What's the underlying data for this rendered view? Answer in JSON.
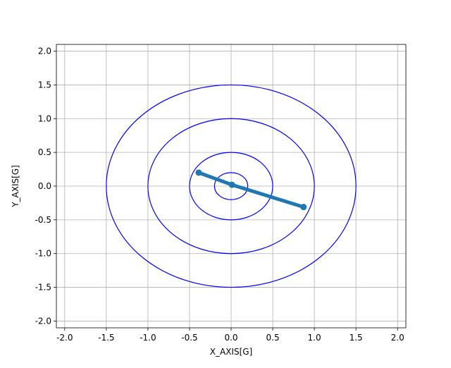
{
  "chart_data": {
    "type": "line",
    "xlabel": "X_AXIS[G]",
    "ylabel": "Y_AXIS[G]",
    "x": [
      -0.39,
      0.01,
      0.87
    ],
    "values": [
      0.2,
      0.02,
      -0.31
    ],
    "color": "#1f77b4",
    "circles": {
      "color": "#0000ff",
      "radii": [
        0.2,
        0.5,
        1,
        1.5
      ]
    },
    "xlim": [
      -2.1,
      2.1
    ],
    "ylim": [
      -2.1,
      2.1
    ],
    "xticks": [
      {
        "value": -2,
        "label": "-2.0"
      },
      {
        "value": -1.5,
        "label": "-1.5"
      },
      {
        "value": -1,
        "label": "-1.0"
      },
      {
        "value": -0.5,
        "label": "-0.5"
      },
      {
        "value": 0,
        "label": "0.0"
      },
      {
        "value": 0.5,
        "label": "0.5"
      },
      {
        "value": 1,
        "label": "1.0"
      },
      {
        "value": 1.5,
        "label": "1.5"
      },
      {
        "value": 2,
        "label": "2.0"
      }
    ],
    "yticks": [
      {
        "value": -2,
        "label": "-2.0"
      },
      {
        "value": -1.5,
        "label": "-1.5"
      },
      {
        "value": -1,
        "label": "-1.0"
      },
      {
        "value": -0.5,
        "label": "-0.5"
      },
      {
        "value": 0,
        "label": "0.0"
      },
      {
        "value": 0.5,
        "label": "0.5"
      },
      {
        "value": 1,
        "label": "1.0"
      },
      {
        "value": 1.5,
        "label": "1.5"
      },
      {
        "value": 2,
        "label": "2.0"
      }
    ],
    "grid": true
  }
}
